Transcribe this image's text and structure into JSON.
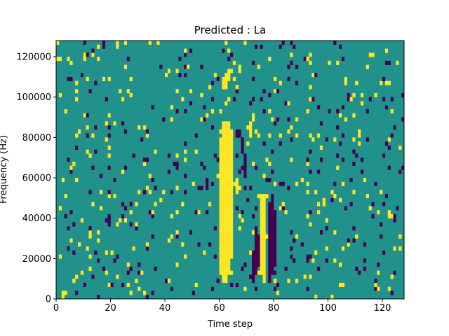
{
  "chart_data": {
    "type": "heatmap",
    "title": "Predicted : La",
    "xlabel": "Time step",
    "ylabel": "Frequency (Hz)",
    "xlim": [
      0,
      128
    ],
    "ylim": [
      0,
      128000
    ],
    "xticks": [
      0,
      20,
      40,
      60,
      80,
      100,
      120
    ],
    "xtick_labels": [
      "0",
      "20",
      "40",
      "60",
      "80",
      "100",
      "120"
    ],
    "yticks": [
      0,
      20000,
      40000,
      60000,
      80000,
      100000,
      120000
    ],
    "ytick_labels": [
      "0",
      "20000",
      "40000",
      "60000",
      "80000",
      "100000",
      "120000"
    ],
    "colormap": "viridis",
    "value_levels": {
      "low": 0,
      "mid": 1,
      "high": 2
    },
    "colors": {
      "low": "#440154",
      "mid": "#21918c",
      "high": "#fde725"
    },
    "grid": false,
    "n_time_steps": 128,
    "n_frequency_bins": 64,
    "bin_height_hz": 2000,
    "background_value": 1,
    "yellow_runs": [
      {
        "t": 2,
        "f": [
          0,
          2
        ]
      },
      {
        "t": 60,
        "f": [
          6,
          40
        ]
      },
      {
        "t": 61,
        "f": [
          4,
          44
        ]
      },
      {
        "t": 62,
        "f": [
          4,
          44
        ]
      },
      {
        "t": 63,
        "f": [
          6,
          44
        ]
      },
      {
        "t": 64,
        "f": [
          10,
          42
        ]
      },
      {
        "t": 61,
        "f": [
          52,
          54
        ]
      },
      {
        "t": 62,
        "f": [
          52,
          56
        ]
      },
      {
        "t": 63,
        "f": [
          54,
          57
        ]
      },
      {
        "t": 75,
        "f": [
          6,
          26
        ]
      },
      {
        "t": 76,
        "f": [
          4,
          26
        ]
      },
      {
        "t": 66,
        "f": [
          26,
          30
        ]
      },
      {
        "t": 71,
        "f": [
          40,
          44
        ]
      }
    ],
    "purple_runs": [
      {
        "t": 72,
        "f": [
          4,
          12
        ]
      },
      {
        "t": 73,
        "f": [
          6,
          18
        ]
      },
      {
        "t": 74,
        "f": [
          8,
          16
        ]
      },
      {
        "t": 78,
        "f": [
          4,
          24
        ]
      },
      {
        "t": 79,
        "f": [
          6,
          26
        ]
      },
      {
        "t": 80,
        "f": [
          8,
          22
        ]
      },
      {
        "t": 66,
        "f": [
          40,
          42
        ]
      },
      {
        "t": 67,
        "f": [
          40,
          42
        ]
      },
      {
        "t": 68,
        "f": [
          36,
          40
        ]
      },
      {
        "t": 69,
        "f": [
          30,
          36
        ]
      }
    ]
  }
}
